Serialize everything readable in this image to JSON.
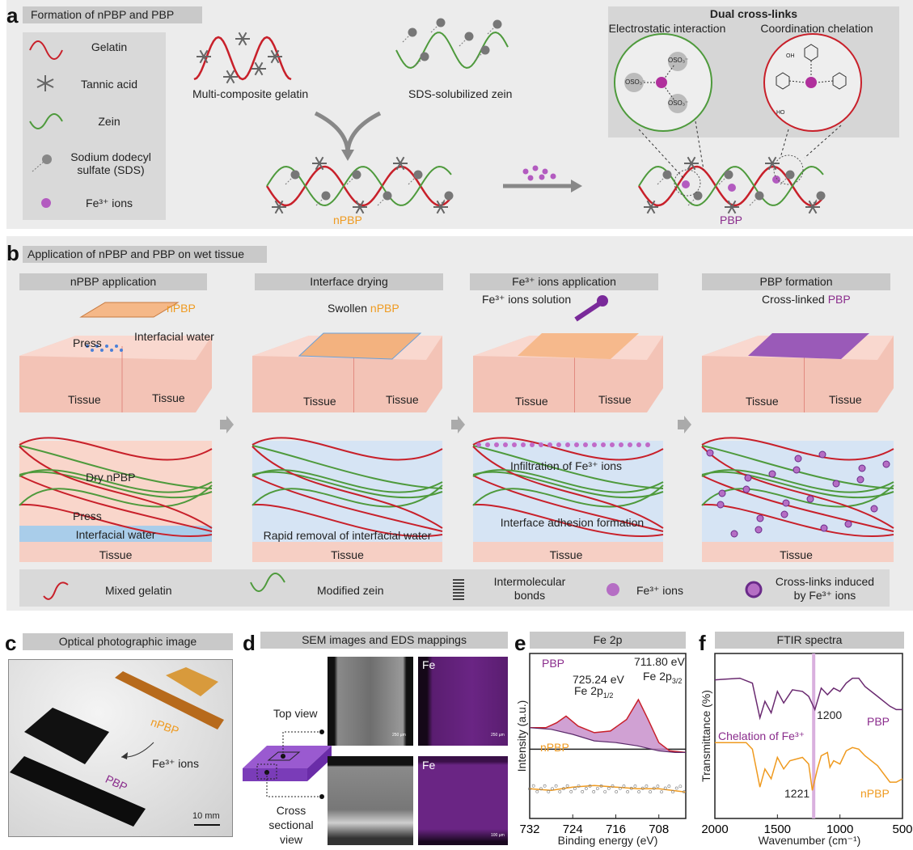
{
  "colors": {
    "gelatin": "#c8202a",
    "zein": "#4e9a3c",
    "npbp": "#ef9a1f",
    "pbp": "#8a2c8c",
    "fe": "#b35bc0",
    "tissue": "#f6cfc4",
    "water": "#a9cdea",
    "panel_bg": "#ececec",
    "header_bg": "#c9c9c9"
  },
  "panel_a": {
    "label": "a",
    "title": "Formation of nPBP and PBP",
    "legend": [
      {
        "label": "Gelatin",
        "icon": "red-wave-icon"
      },
      {
        "label": "Tannic acid",
        "icon": "star-icon"
      },
      {
        "label": "Zein",
        "icon": "green-wave-icon"
      },
      {
        "label": "Sodium dodecyl sulfate (SDS)",
        "icon": "sds-icon"
      },
      {
        "label": "Fe³⁺ ions",
        "icon": "purple-dot-icon"
      }
    ],
    "gelatin_label": "Multi-composite gelatin",
    "zein_label": "SDS-solubilized zein",
    "npbp": "nPBP",
    "pbp": "PBP",
    "dual": {
      "title": "Dual cross-links",
      "left": "Electrostatic interaction",
      "right": "Coordination chelation",
      "oso3": "OSO₃⁻",
      "oh": "OH",
      "ho": "HO"
    }
  },
  "panel_b": {
    "label": "b",
    "title": "Application of nPBP and PBP on wet tissue",
    "steps": [
      {
        "header": "nPBP application",
        "film": "nPBP",
        "press": "Press",
        "water": "Interfacial water",
        "tissue_l": "Tissue",
        "tissue_r": "Tissue",
        "s_title": "Dry nPBP",
        "s_press": "Press",
        "s_water": "Interfacial water",
        "s_tissue": "Tissue"
      },
      {
        "header": "Interface drying",
        "film_pre": "Swollen ",
        "film": "nPBP",
        "tissue_l": "Tissue",
        "tissue_r": "Tissue",
        "s_water": "Rapid removal of interfacial water",
        "s_tissue": "Tissue"
      },
      {
        "header": "Fe³⁺ ions application",
        "solution": "Fe³⁺ ions solution",
        "tissue_l": "Tissue",
        "tissue_r": "Tissue",
        "s_top": "Infiltration of Fe³⁺ ions",
        "s_mid": "Interface adhesion formation",
        "s_tissue": "Tissue"
      },
      {
        "header": "PBP formation",
        "film_pre": "Cross-linked ",
        "film": "PBP",
        "tissue_l": "Tissue",
        "tissue_r": "Tissue",
        "s_tissue": "Tissue"
      }
    ],
    "legend": [
      "Mixed gelatin",
      "Modified zein",
      "Intermolecular bonds",
      "Fe³⁺ ions",
      "Cross-links induced by Fe³⁺ ions"
    ]
  },
  "panel_c": {
    "label": "c",
    "title": "Optical photographic image",
    "npbp": "nPBP",
    "arrow": "Fe³⁺ ions",
    "pbp": "PBP",
    "scale": "10 mm"
  },
  "panel_d": {
    "label": "d",
    "title": "SEM images and EDS mappings",
    "top": "Top view",
    "cross": "Cross sectional view",
    "fe": "Fe",
    "scale_top_sem": "250 µm",
    "scale_top_eds": "250 µm",
    "scale_cross_eds": "100 µm"
  },
  "chart_data": [
    {
      "panel": "e",
      "type": "line",
      "title": "Fe 2p",
      "xlabel": "Binding energy (eV)",
      "ylabel": "Intensity (a.u.)",
      "xlim": [
        732,
        703
      ],
      "xticks": [
        732,
        724,
        716,
        708
      ],
      "ylim": [
        0,
        1
      ],
      "grid": false,
      "series": [
        {
          "name": "PBP",
          "x": [
            732,
            729,
            727,
            725.24,
            723,
            720,
            717,
            714,
            711.8,
            710,
            708,
            706,
            703
          ],
          "y": [
            0.55,
            0.55,
            0.58,
            0.62,
            0.56,
            0.52,
            0.53,
            0.6,
            0.72,
            0.6,
            0.46,
            0.41,
            0.4
          ]
        },
        {
          "name": "PBP background",
          "x": [
            732,
            728,
            724,
            720,
            716,
            712,
            708,
            705,
            703
          ],
          "y": [
            0.55,
            0.54,
            0.51,
            0.47,
            0.46,
            0.44,
            0.41,
            0.4,
            0.4
          ]
        },
        {
          "name": "nPBP",
          "x": [
            732,
            728,
            724,
            720,
            716,
            712,
            708,
            703
          ],
          "y": [
            0.18,
            0.17,
            0.19,
            0.2,
            0.19,
            0.18,
            0.18,
            0.16
          ]
        }
      ],
      "annotations": [
        {
          "value": "725.24 eV",
          "label": "Fe 2p",
          "sub": "1/2"
        },
        {
          "value": "711.80 eV",
          "label": "Fe 2p",
          "sub": "3/2"
        }
      ]
    },
    {
      "panel": "f",
      "type": "line",
      "title": "FTIR spectra",
      "xlabel": "Wavenumber (cm⁻¹)",
      "ylabel": "Transmittance (%)",
      "xlim": [
        2000,
        500
      ],
      "xticks": [
        2000,
        1500,
        1000,
        500
      ],
      "ylim": [
        0,
        100
      ],
      "grid": false,
      "series": [
        {
          "name": "PBP",
          "x": [
            2000,
            1800,
            1700,
            1640,
            1600,
            1550,
            1500,
            1450,
            1380,
            1300,
            1250,
            1200,
            1150,
            1100,
            1050,
            1000,
            950,
            900,
            850,
            800,
            700,
            600,
            550,
            500
          ],
          "y": [
            84,
            85,
            82,
            61,
            71,
            64,
            77,
            70,
            78,
            77,
            74,
            66,
            79,
            75,
            79,
            77,
            82,
            85,
            85,
            80,
            74,
            68,
            66,
            66
          ]
        },
        {
          "name": "nPBP",
          "x": [
            2000,
            1750,
            1700,
            1640,
            1600,
            1550,
            1500,
            1450,
            1400,
            1300,
            1250,
            1221,
            1180,
            1150,
            1100,
            1080,
            1050,
            1000,
            950,
            900,
            850,
            800,
            700,
            600,
            550,
            500
          ],
          "y": [
            46,
            46,
            42,
            19,
            30,
            24,
            37,
            30,
            35,
            37,
            33,
            17,
            30,
            38,
            40,
            31,
            35,
            33,
            41,
            43,
            42,
            38,
            32,
            22,
            22,
            24
          ]
        }
      ],
      "annotations": [
        {
          "label": "1200"
        },
        {
          "label": "1221"
        },
        {
          "label": "Chelation of Fe³⁺"
        }
      ],
      "highlight_band": 1210
    }
  ]
}
